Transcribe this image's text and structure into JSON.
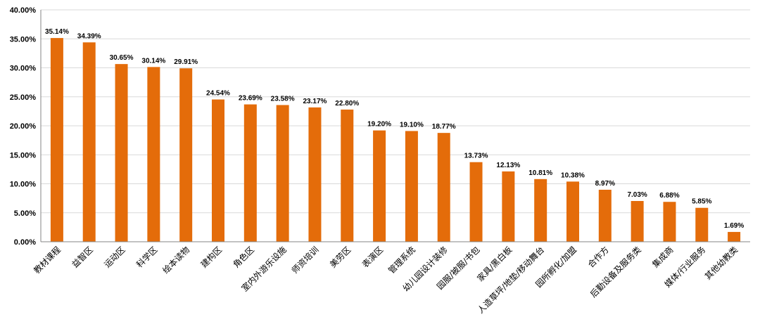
{
  "chart_data": {
    "type": "bar",
    "categories": [
      "教材课程",
      "益智区",
      "运动区",
      "科学区",
      "绘本读物",
      "建构区",
      "角色区",
      "室内外游乐设施",
      "师资培训",
      "美劳区",
      "表演区",
      "管理系统",
      "幼儿园设计装修",
      "园服/被服/书包",
      "家具/黑白板",
      "人造草坪/地垫/移动舞台",
      "园所孵化/加盟",
      "合作方",
      "后勤设备及服务类",
      "集成商",
      "媒体/行业服务",
      "其他幼教类"
    ],
    "values": [
      35.14,
      34.39,
      30.65,
      30.14,
      29.91,
      24.54,
      23.69,
      23.58,
      23.17,
      22.8,
      19.2,
      19.1,
      18.77,
      13.73,
      12.13,
      10.81,
      10.38,
      8.97,
      7.03,
      6.88,
      5.85,
      1.69
    ],
    "value_labels": [
      "35.14%",
      "34.39%",
      "30.65%",
      "30.14%",
      "29.91%",
      "24.54%",
      "23.69%",
      "23.58%",
      "23.17%",
      "22.80%",
      "19.20%",
      "19.10%",
      "18.77%",
      "13.73%",
      "12.13%",
      "10.81%",
      "10.38%",
      "8.97%",
      "7.03%",
      "6.88%",
      "5.85%",
      "1.69%"
    ],
    "y_ticks": [
      "0.00%",
      "5.00%",
      "10.00%",
      "15.00%",
      "20.00%",
      "25.00%",
      "30.00%",
      "35.00%",
      "40.00%"
    ],
    "ylim": [
      0,
      40
    ],
    "grid": true,
    "legend": "none",
    "bar_color": "#E46C0A"
  }
}
